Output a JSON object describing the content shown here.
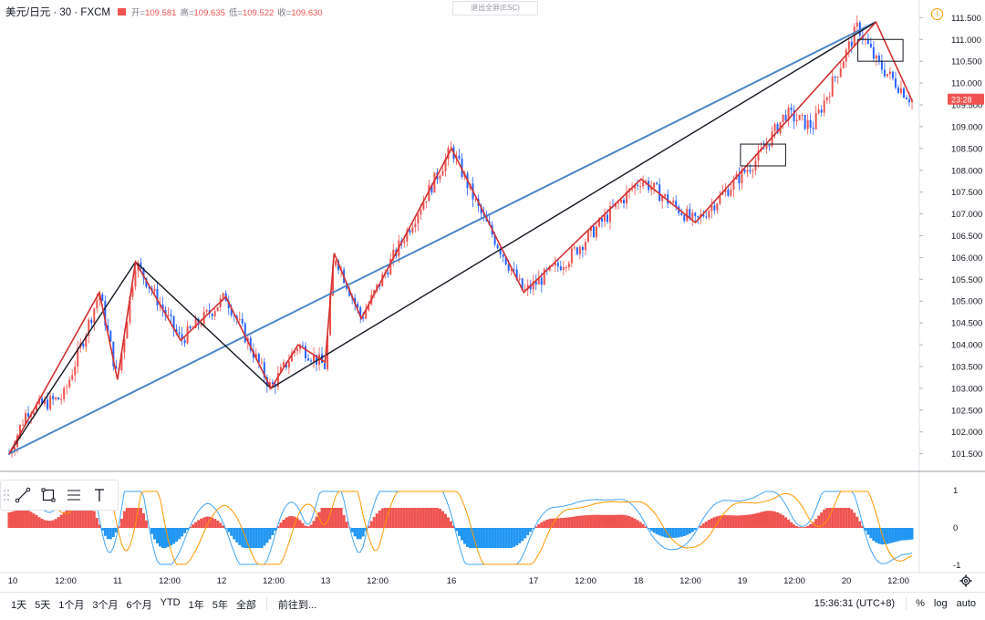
{
  "header": {
    "symbol": "美元/日元 · 30 · FXCM",
    "open_label": "开",
    "open": "109.581",
    "high_label": "高",
    "high": "109.635",
    "low_label": "低",
    "low": "109.522",
    "close_label": "收",
    "close": "109.630"
  },
  "exit_fullscreen": "退出全屏(ESC)",
  "price_tag": "23:28",
  "price_axis": [
    "111.500",
    "111.000",
    "110.500",
    "110.000",
    "109.500",
    "109.000",
    "108.500",
    "108.000",
    "107.500",
    "107.000",
    "106.500",
    "106.000",
    "105.500",
    "105.000",
    "104.500",
    "104.000",
    "103.500",
    "103.000",
    "102.500",
    "102.000",
    "101.500"
  ],
  "osc_axis": [
    "1",
    "0",
    "-1"
  ],
  "time_axis": [
    "10",
    "12:00",
    "11",
    "12:00",
    "12",
    "12:00",
    "13",
    "12:00",
    "16",
    "17",
    "12:00",
    "18",
    "12:00",
    "19",
    "12:00",
    "20",
    "12:00"
  ],
  "bottom": {
    "ranges": [
      "1天",
      "5天",
      "1个月",
      "3个月",
      "6个月",
      "YTD",
      "1年",
      "5年",
      "全部"
    ],
    "goto": "前往到...",
    "clock": "15:36:31 (UTC+8)",
    "percent": "%",
    "log": "log",
    "auto": "auto"
  },
  "colors": {
    "up": "#ef5350",
    "down": "#2962ff",
    "red_line": "#d32f2f",
    "blue_line": "#4a86c8",
    "black_line": "#131722",
    "macd_pos": "#ef5350",
    "macd_neg": "#2196f3",
    "signal": "#ff9800",
    "macd": "#42a5f5"
  },
  "chart_data": {
    "type": "candlestick",
    "title": "美元/日元 · 30 · FXCM",
    "ylim": [
      101.2,
      111.8
    ],
    "price_points": [
      [
        0,
        101.5
      ],
      [
        0.02,
        102.5
      ],
      [
        0.06,
        102.8
      ],
      [
        0.1,
        105.2
      ],
      [
        0.12,
        103.2
      ],
      [
        0.14,
        105.9
      ],
      [
        0.19,
        104.1
      ],
      [
        0.24,
        105.1
      ],
      [
        0.29,
        103.0
      ],
      [
        0.32,
        104.0
      ],
      [
        0.35,
        103.5
      ],
      [
        0.36,
        106.1
      ],
      [
        0.39,
        104.6
      ],
      [
        0.42,
        105.8
      ],
      [
        0.49,
        108.5
      ],
      [
        0.52,
        107.1
      ],
      [
        0.57,
        105.2
      ],
      [
        0.62,
        106.0
      ],
      [
        0.7,
        107.8
      ],
      [
        0.76,
        106.8
      ],
      [
        0.83,
        108.3
      ],
      [
        0.86,
        109.3
      ],
      [
        0.89,
        109.0
      ],
      [
        0.94,
        111.3
      ],
      [
        0.96,
        110.5
      ],
      [
        1.0,
        109.6
      ]
    ],
    "red_zigzag": [
      [
        0,
        101.5
      ],
      [
        0.1,
        105.2
      ],
      [
        0.12,
        103.2
      ],
      [
        0.14,
        105.9
      ],
      [
        0.19,
        104.1
      ],
      [
        0.24,
        105.1
      ],
      [
        0.29,
        103.0
      ],
      [
        0.32,
        104.0
      ],
      [
        0.35,
        103.6
      ],
      [
        0.36,
        106.1
      ],
      [
        0.39,
        104.6
      ],
      [
        0.49,
        108.5
      ],
      [
        0.57,
        105.2
      ],
      [
        0.7,
        107.8
      ],
      [
        0.76,
        106.8
      ],
      [
        0.96,
        111.4
      ],
      [
        1.0,
        109.6
      ]
    ],
    "black_lines": [
      [
        [
          0,
          101.5
        ],
        [
          0.14,
          105.9
        ],
        [
          0.29,
          103.0
        ],
        [
          0.96,
          111.4
        ]
      ]
    ],
    "blue_line": [
      [
        0,
        101.5
      ],
      [
        0.96,
        111.4
      ]
    ],
    "boxes": [
      {
        "x0": 0.81,
        "x1": 0.86,
        "y0": 108.1,
        "y1": 108.6
      },
      {
        "x0": 0.94,
        "x1": 0.99,
        "y0": 110.5,
        "y1": 111.0
      }
    ],
    "last_price": 109.63
  }
}
